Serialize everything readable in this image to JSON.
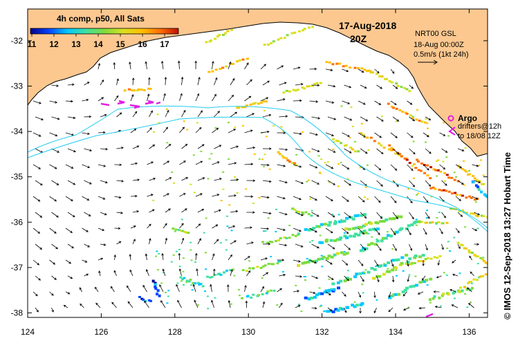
{
  "colorbar": {
    "title": "4h comp, p50, All Sats",
    "ticks": [
      "11",
      "12",
      "13",
      "14",
      "15",
      "16",
      "17"
    ],
    "stops": [
      "#00008b",
      "#0044ff",
      "#00c8ff",
      "#40e0a0",
      "#7fdc3c",
      "#d8e020",
      "#ffc000",
      "#ff7000",
      "#c01000"
    ]
  },
  "date": "17-Aug-2018",
  "time": "20Z",
  "current_info": {
    "product": "NRT00 GSL",
    "valid_time": "18-Aug 00:00Z",
    "scale": "0.5m/s (1kt 24h)"
  },
  "legend": {
    "argo_label": "Argo",
    "drifter_line1": "drifters@12h",
    "drifter_line2": "to 18/08 12Z"
  },
  "credit": "© IMOS 12-Sep-2018 13:27 Hobart Time",
  "axes": {
    "x_ticks": [
      "124",
      "126",
      "128",
      "130",
      "132",
      "134",
      "136"
    ],
    "y_ticks": [
      "-32",
      "-33",
      "-34",
      "-35",
      "-36",
      "-37",
      "-38"
    ],
    "x_range": [
      124,
      136.5
    ],
    "y_range": [
      -38.1,
      -31.3
    ]
  },
  "colors": {
    "land": "#fcc890",
    "contour": "#22ccee",
    "drifter": "#e020e0",
    "argo": "#e020e0"
  }
}
